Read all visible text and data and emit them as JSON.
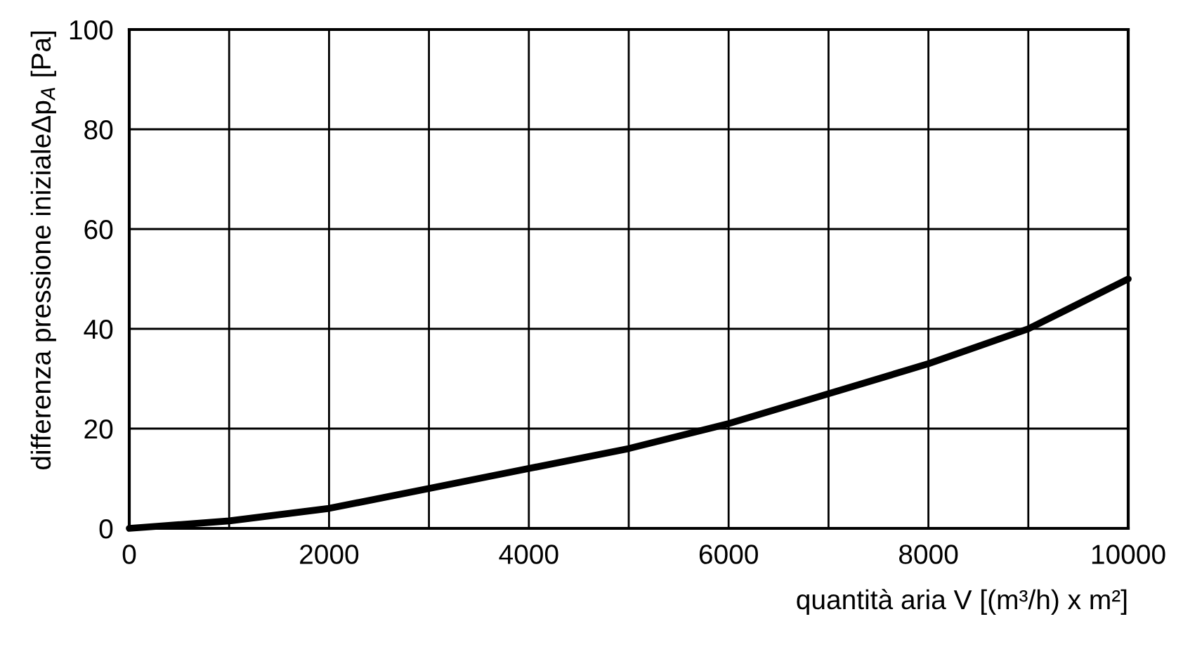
{
  "chart_data": {
    "type": "line",
    "xlabel": "quantità aria V [(m³/h) x m²]",
    "ylabel": "differenza pressione inizialeΔp$_{A}$ [Pa]",
    "x": [
      0,
      1000,
      2000,
      3000,
      4000,
      5000,
      6000,
      7000,
      8000,
      9000,
      10000
    ],
    "series": [
      {
        "color": "#000000",
        "values": [
          0,
          1.5,
          4,
          8,
          12,
          16,
          21,
          27,
          33,
          40,
          50
        ]
      }
    ],
    "xlim": [
      0,
      10000
    ],
    "ylim": [
      0,
      100
    ],
    "xticks": [
      0,
      2000,
      4000,
      6000,
      8000,
      10000
    ],
    "yticks": [
      0,
      20,
      40,
      60,
      80,
      100
    ],
    "grid": true,
    "marker": "none",
    "line_style": "solid",
    "legend": false
  }
}
